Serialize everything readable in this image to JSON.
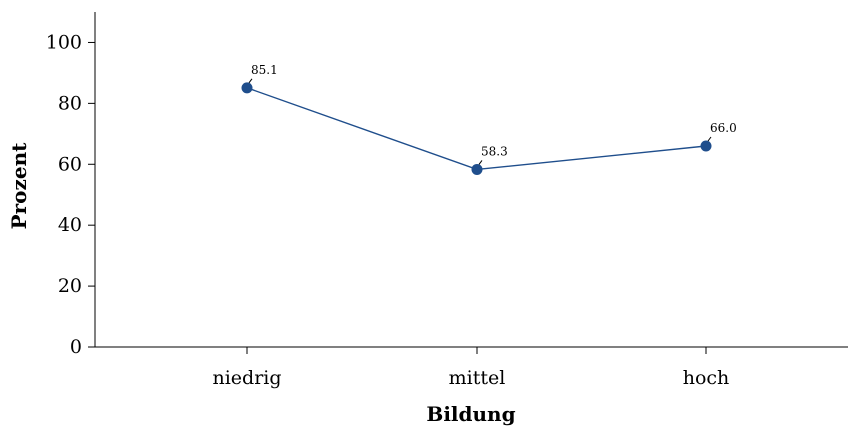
{
  "chart_data": {
    "type": "line",
    "title": "",
    "xlabel": "Bildung",
    "ylabel": "Prozent",
    "categories": [
      "niedrig",
      "mittel",
      "hoch"
    ],
    "series": [
      {
        "values": [
          85.1,
          58.3,
          66.0
        ],
        "labels": [
          "85.1",
          "58.3",
          "66.0"
        ]
      }
    ],
    "ylim": [
      0,
      110
    ],
    "yticks": [
      0,
      20,
      40,
      60,
      80,
      100
    ],
    "grid": false,
    "line_color": "#1f4e8c",
    "marker_color": "#1f4e8c"
  }
}
